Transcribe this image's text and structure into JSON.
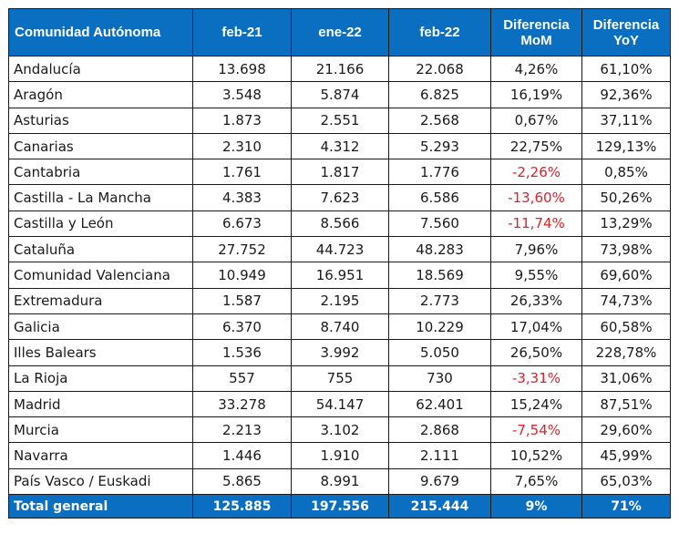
{
  "table": {
    "headers": [
      "Comunidad Autónoma",
      "feb-21",
      "ene-22",
      "feb-22",
      "Diferencia\nMoM",
      "Diferencia\nYoY"
    ],
    "header_lines": {
      "mom": [
        "Diferencia",
        "MoM"
      ],
      "yoy": [
        "Diferencia",
        "YoY"
      ]
    },
    "rows": [
      {
        "name": "Andalucía",
        "feb21": "13.698",
        "ene22": "21.166",
        "feb22": "22.068",
        "mom": "4,26%",
        "yoy": "61,10%",
        "mom_negative": false
      },
      {
        "name": "Aragón",
        "feb21": "3.548",
        "ene22": "5.874",
        "feb22": "6.825",
        "mom": "16,19%",
        "yoy": "92,36%",
        "mom_negative": false
      },
      {
        "name": "Asturias",
        "feb21": "1.873",
        "ene22": "2.551",
        "feb22": "2.568",
        "mom": "0,67%",
        "yoy": "37,11%",
        "mom_negative": false
      },
      {
        "name": "Canarias",
        "feb21": "2.310",
        "ene22": "4.312",
        "feb22": "5.293",
        "mom": "22,75%",
        "yoy": "129,13%",
        "mom_negative": false
      },
      {
        "name": "Cantabria",
        "feb21": "1.761",
        "ene22": "1.817",
        "feb22": "1.776",
        "mom": "-2,26%",
        "yoy": "0,85%",
        "mom_negative": true
      },
      {
        "name": "Castilla - La Mancha",
        "feb21": "4.383",
        "ene22": "7.623",
        "feb22": "6.586",
        "mom": "-13,60%",
        "yoy": "50,26%",
        "mom_negative": true
      },
      {
        "name": "Castilla y León",
        "feb21": "6.673",
        "ene22": "8.566",
        "feb22": "7.560",
        "mom": "-11,74%",
        "yoy": "13,29%",
        "mom_negative": true
      },
      {
        "name": "Cataluña",
        "feb21": "27.752",
        "ene22": "44.723",
        "feb22": "48.283",
        "mom": "7,96%",
        "yoy": "73,98%",
        "mom_negative": false
      },
      {
        "name": "Comunidad Valenciana",
        "feb21": "10.949",
        "ene22": "16.951",
        "feb22": "18.569",
        "mom": "9,55%",
        "yoy": "69,60%",
        "mom_negative": false
      },
      {
        "name": "Extremadura",
        "feb21": "1.587",
        "ene22": "2.195",
        "feb22": "2.773",
        "mom": "26,33%",
        "yoy": "74,73%",
        "mom_negative": false
      },
      {
        "name": "Galicia",
        "feb21": "6.370",
        "ene22": "8.740",
        "feb22": "10.229",
        "mom": "17,04%",
        "yoy": "60,58%",
        "mom_negative": false
      },
      {
        "name": "Illes Balears",
        "feb21": "1.536",
        "ene22": "3.992",
        "feb22": "5.050",
        "mom": "26,50%",
        "yoy": "228,78%",
        "mom_negative": false
      },
      {
        "name": "La Rioja",
        "feb21": "557",
        "ene22": "755",
        "feb22": "730",
        "mom": "-3,31%",
        "yoy": "31,06%",
        "mom_negative": true
      },
      {
        "name": "Madrid",
        "feb21": "33.278",
        "ene22": "54.147",
        "feb22": "62.401",
        "mom": "15,24%",
        "yoy": "87,51%",
        "mom_negative": false
      },
      {
        "name": "Murcia",
        "feb21": "2.213",
        "ene22": "3.102",
        "feb22": "2.868",
        "mom": "-7,54%",
        "yoy": "29,60%",
        "mom_negative": true
      },
      {
        "name": "Navarra",
        "feb21": "1.446",
        "ene22": "1.910",
        "feb22": "2.111",
        "mom": "10,52%",
        "yoy": "45,99%",
        "mom_negative": false
      },
      {
        "name": "País Vasco / Euskadi",
        "feb21": "5.865",
        "ene22": "8.991",
        "feb22": "9.679",
        "mom": "7,65%",
        "yoy": "65,03%",
        "mom_negative": false
      }
    ],
    "total": {
      "name": "Total general",
      "feb21": "125.885",
      "ene22": "197.556",
      "feb22": "215.444",
      "mom": "9%",
      "yoy": "71%"
    }
  },
  "colors": {
    "header_bg": "#0b6fc1",
    "header_text": "#ffffff",
    "negative": "#e0202a",
    "text": "#1a1a1a",
    "border": "#1a1a1a"
  }
}
